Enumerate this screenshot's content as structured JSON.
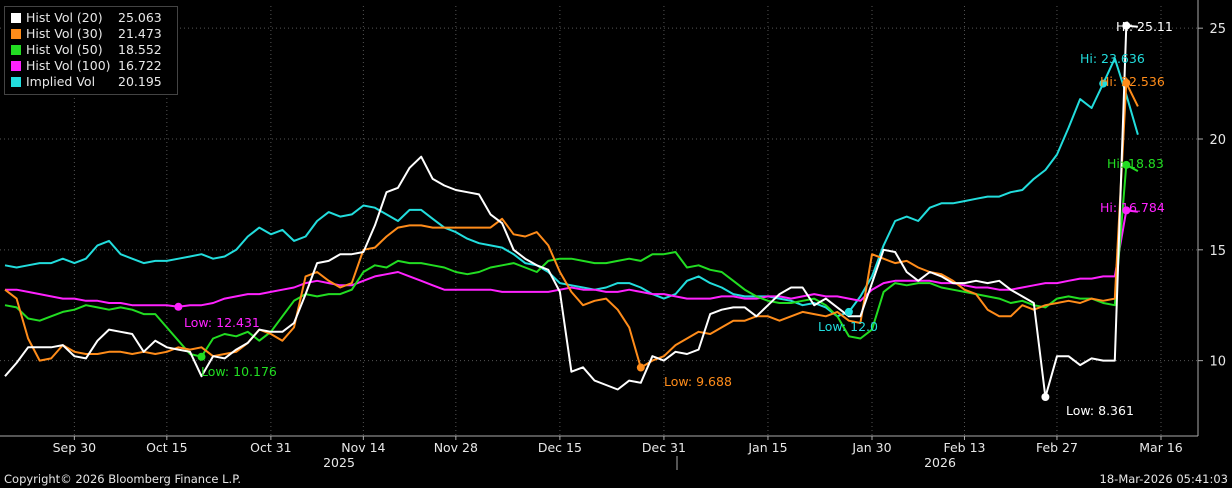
{
  "legend": [
    {
      "name": "Hist Vol (20)",
      "value": "25.063",
      "color": "#ffffff"
    },
    {
      "name": "Hist Vol (30)",
      "value": "21.473",
      "color": "#ff8c1a"
    },
    {
      "name": "Hist Vol (50)",
      "value": "18.552",
      "color": "#22dd22"
    },
    {
      "name": "Hist Vol (100)",
      "value": "16.722",
      "color": "#ff22ff"
    },
    {
      "name": "Implied Vol",
      "value": "20.195",
      "color": "#22dddd"
    }
  ],
  "footer": {
    "copyright": "Copyright© 2026 Bloomberg Finance L.P.",
    "timestamp": "18-Mar-2026 05:41:03"
  },
  "chart_data": {
    "type": "line",
    "x_tick_labels": [
      "Sep 30",
      "Oct 15",
      "Oct 31",
      "Nov 14",
      "Nov 28",
      "Dec 15",
      "Dec 31",
      "Jan 15",
      "Jan 30",
      "Feb 13",
      "Feb 27",
      "Mar 16"
    ],
    "x_year_labels": [
      "2025",
      "2026"
    ],
    "y_ticks": [
      10,
      15,
      20,
      25
    ],
    "ylim": [
      6.6,
      26.0
    ],
    "grid": true,
    "legend_position": "top-left",
    "series": [
      {
        "name": "Hist Vol (20)",
        "color": "#ffffff",
        "values": [
          9.3,
          9.9,
          10.6,
          10.6,
          10.6,
          10.7,
          10.2,
          10.1,
          10.9,
          11.4,
          11.3,
          11.2,
          10.4,
          10.9,
          10.6,
          10.5,
          10.4,
          9.3,
          10.2,
          10.1,
          10.5,
          10.8,
          11.4,
          11.3,
          11.3,
          11.7,
          13.0,
          14.4,
          14.5,
          14.8,
          14.8,
          14.9,
          16.1,
          17.6,
          17.8,
          18.7,
          19.2,
          18.2,
          17.9,
          17.7,
          17.6,
          17.5,
          16.6,
          16.2,
          15.0,
          14.6,
          14.3,
          14.1,
          13.1,
          9.5,
          9.7,
          9.1,
          8.9,
          8.7,
          9.1,
          9.0,
          10.2,
          10.0,
          10.4,
          10.3,
          10.5,
          12.1,
          12.3,
          12.4,
          12.4,
          12.0,
          12.5,
          13.0,
          13.3,
          13.3,
          12.5,
          12.8,
          12.4,
          12.0,
          12.0,
          13.5,
          15.0,
          14.9,
          14.0,
          13.6,
          14.0,
          13.8,
          13.5,
          13.5,
          13.6,
          13.5,
          13.6,
          13.2,
          12.9,
          12.6,
          8.36,
          10.2,
          10.2,
          9.8,
          10.1,
          10.0,
          10.0,
          25.11,
          25.06
        ]
      },
      {
        "name": "Hist Vol (30)",
        "color": "#ff8c1a",
        "values": [
          13.2,
          12.8,
          11.0,
          10.0,
          10.1,
          10.7,
          10.4,
          10.3,
          10.3,
          10.4,
          10.4,
          10.3,
          10.4,
          10.3,
          10.4,
          10.6,
          10.5,
          10.6,
          10.2,
          10.3,
          10.4,
          10.8,
          11.4,
          11.2,
          10.9,
          11.5,
          13.8,
          14.0,
          13.6,
          13.3,
          13.5,
          15.0,
          15.1,
          15.6,
          16.0,
          16.1,
          16.1,
          16.0,
          16.0,
          16.0,
          16.0,
          16.0,
          16.0,
          16.4,
          15.7,
          15.6,
          15.8,
          15.2,
          14.0,
          13.1,
          12.5,
          12.7,
          12.8,
          12.3,
          11.5,
          9.688,
          10.0,
          10.2,
          10.7,
          11.0,
          11.3,
          11.2,
          11.5,
          11.8,
          11.8,
          12.0,
          12.0,
          11.8,
          12.0,
          12.2,
          12.1,
          12.0,
          12.2,
          11.8,
          11.7,
          14.8,
          14.6,
          14.4,
          14.5,
          14.2,
          14.0,
          13.9,
          13.6,
          13.2,
          13.0,
          12.3,
          12.0,
          12.0,
          12.5,
          12.3,
          12.5,
          12.6,
          12.7,
          12.6,
          12.8,
          12.7,
          12.8,
          22.53,
          21.47
        ]
      },
      {
        "name": "Hist Vol (50)",
        "color": "#22dd22",
        "values": [
          12.5,
          12.4,
          11.9,
          11.8,
          12.0,
          12.2,
          12.3,
          12.5,
          12.4,
          12.3,
          12.4,
          12.3,
          12.1,
          12.1,
          11.5,
          10.9,
          10.3,
          10.176,
          11.0,
          11.2,
          11.1,
          11.3,
          10.9,
          11.3,
          12.0,
          12.7,
          13.0,
          12.9,
          13.0,
          13.0,
          13.2,
          14.0,
          14.3,
          14.2,
          14.5,
          14.4,
          14.4,
          14.3,
          14.2,
          14.0,
          13.9,
          14.0,
          14.2,
          14.3,
          14.4,
          14.2,
          14.0,
          14.5,
          14.6,
          14.6,
          14.5,
          14.4,
          14.4,
          14.5,
          14.6,
          14.5,
          14.8,
          14.8,
          14.9,
          14.2,
          14.3,
          14.1,
          14.0,
          13.6,
          13.2,
          12.9,
          12.7,
          12.6,
          12.6,
          12.7,
          12.8,
          12.5,
          12.0,
          11.1,
          11.0,
          11.4,
          13.1,
          13.5,
          13.4,
          13.5,
          13.5,
          13.3,
          13.2,
          13.1,
          13.0,
          12.9,
          12.8,
          12.6,
          12.7,
          12.5,
          12.4,
          12.8,
          12.9,
          12.8,
          12.8,
          12.6,
          12.5,
          18.83,
          18.55
        ]
      },
      {
        "name": "Hist Vol (100)",
        "color": "#ff22ff",
        "values": [
          13.2,
          13.2,
          13.1,
          13.0,
          12.9,
          12.8,
          12.8,
          12.7,
          12.7,
          12.6,
          12.6,
          12.5,
          12.5,
          12.5,
          12.5,
          12.43,
          12.5,
          12.5,
          12.6,
          12.8,
          12.9,
          13.0,
          13.0,
          13.1,
          13.2,
          13.3,
          13.5,
          13.6,
          13.5,
          13.4,
          13.4,
          13.6,
          13.8,
          13.9,
          14.0,
          13.8,
          13.6,
          13.4,
          13.2,
          13.2,
          13.2,
          13.2,
          13.2,
          13.1,
          13.1,
          13.1,
          13.1,
          13.1,
          13.2,
          13.3,
          13.2,
          13.2,
          13.1,
          13.1,
          13.2,
          13.1,
          13.0,
          13.0,
          12.9,
          12.8,
          12.8,
          12.8,
          12.9,
          12.9,
          12.8,
          12.8,
          12.9,
          12.9,
          12.8,
          12.9,
          13.0,
          12.9,
          12.9,
          12.8,
          12.7,
          13.2,
          13.5,
          13.6,
          13.6,
          13.6,
          13.6,
          13.5,
          13.5,
          13.4,
          13.3,
          13.3,
          13.2,
          13.2,
          13.3,
          13.4,
          13.5,
          13.5,
          13.6,
          13.7,
          13.7,
          13.8,
          13.8,
          16.78,
          16.72
        ]
      },
      {
        "name": "Implied Vol",
        "color": "#22dddd",
        "values": [
          14.3,
          14.2,
          14.3,
          14.4,
          14.4,
          14.6,
          14.4,
          14.6,
          15.2,
          15.4,
          14.8,
          14.6,
          14.4,
          14.5,
          14.5,
          14.6,
          14.7,
          14.8,
          14.6,
          14.7,
          15.0,
          15.6,
          16.0,
          15.7,
          15.9,
          15.4,
          15.6,
          16.3,
          16.7,
          16.5,
          16.6,
          17.0,
          16.9,
          16.6,
          16.3,
          16.8,
          16.8,
          16.4,
          16.0,
          15.8,
          15.5,
          15.3,
          15.2,
          15.1,
          14.8,
          14.4,
          14.3,
          14.0,
          13.5,
          13.4,
          13.3,
          13.2,
          13.3,
          13.5,
          13.5,
          13.3,
          13.0,
          12.8,
          13.0,
          13.6,
          13.8,
          13.5,
          13.3,
          13.0,
          12.9,
          12.9,
          12.9,
          12.8,
          12.7,
          12.5,
          12.6,
          12.4,
          12.0,
          12.2,
          12.9,
          13.8,
          15.2,
          16.3,
          16.5,
          16.3,
          16.9,
          17.1,
          17.1,
          17.2,
          17.3,
          17.4,
          17.4,
          17.6,
          17.7,
          18.2,
          18.6,
          19.3,
          20.5,
          21.8,
          21.4,
          22.5,
          23.636,
          22.0,
          20.195
        ]
      }
    ],
    "annotations": [
      {
        "series": "Hist Vol (20)",
        "label": "Hi: 25.11",
        "color": "#ffffff"
      },
      {
        "series": "Hist Vol (20)",
        "label": "Low: 8.361",
        "color": "#ffffff"
      },
      {
        "series": "Implied Vol",
        "label": "Hi: 23.636",
        "color": "#22dddd"
      },
      {
        "series": "Implied Vol",
        "label": "Low: 12.0",
        "color": "#22dddd"
      },
      {
        "series": "Hist Vol (30)",
        "label": "Hi: 22.536",
        "color": "#ff8c1a"
      },
      {
        "series": "Hist Vol (30)",
        "label": "Low: 9.688",
        "color": "#ff8c1a"
      },
      {
        "series": "Hist Vol (50)",
        "label": "Hi: 18.83",
        "color": "#22dd22"
      },
      {
        "series": "Hist Vol (50)",
        "label": "Low: 10.176",
        "color": "#22dd22"
      },
      {
        "series": "Hist Vol (100)",
        "label": "Hi: 16.784",
        "color": "#ff22ff"
      },
      {
        "series": "Hist Vol (100)",
        "label": "Low: 12.431",
        "color": "#ff22ff"
      }
    ]
  }
}
